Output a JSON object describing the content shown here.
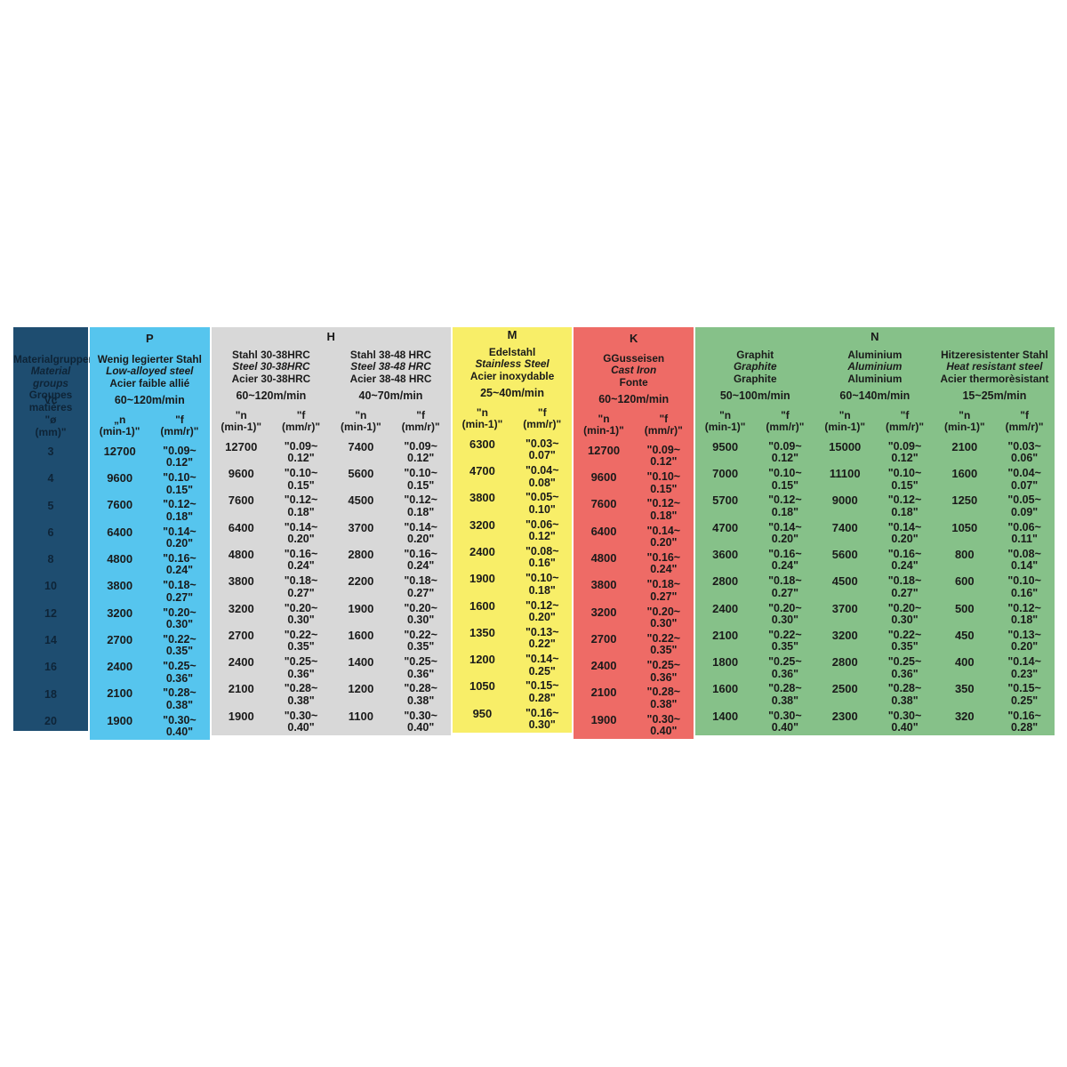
{
  "colors": {
    "page_bg": "#ffffff",
    "legend_bg": "#1e4d70",
    "legend_text": "#0e2437",
    "text": "#1a1a1a",
    "group_P": "#56c5ee",
    "group_H": "#d8d8d8",
    "group_M": "#f8ee68",
    "group_K": "#ee6b66",
    "group_N": "#86c189"
  },
  "chart_data": {
    "type": "table",
    "title": "Machining cutting data by material group (ISO P/H/M/K/N)",
    "legend": {
      "material_lines": [
        "Materialgruppen",
        "Material groups",
        "Groupes matières"
      ],
      "vc_label": "Vc",
      "dia_header": "\"ø\n(mm)\"",
      "diameters": [
        "3",
        "4",
        "5",
        "6",
        "8",
        "10",
        "12",
        "14",
        "16",
        "18",
        "20"
      ]
    },
    "groups": [
      {
        "letter": "P",
        "subgroups": [
          {
            "material": [
              "Wenig legierter Stahl",
              "Low-alloyed steel",
              "Acier faible allié"
            ],
            "vc": "60~120m/min",
            "n_header": "„n\n(min-1)\"",
            "f_header": "\"f\n(mm/r)\"",
            "n": [
              "12700",
              "9600",
              "7600",
              "6400",
              "4800",
              "3800",
              "3200",
              "2700",
              "2400",
              "2100",
              "1900"
            ],
            "f": [
              "\"0.09~\n0.12\"",
              "\"0.10~\n0.15\"",
              "\"0.12~\n0.18\"",
              "\"0.14~\n0.20\"",
              "\"0.16~\n0.24\"",
              "\"0.18~\n0.27\"",
              "\"0.20~\n0.30\"",
              "\"0.22~\n0.35\"",
              "\"0.25~\n0.36\"",
              "\"0.28~\n0.38\"",
              "\"0.30~\n0.40\""
            ]
          }
        ]
      },
      {
        "letter": "H",
        "subgroups": [
          {
            "material": [
              "Stahl 30-38HRC",
              "Steel 30-38HRC",
              "Acier 30-38HRC"
            ],
            "vc": "60~120m/min",
            "n_header": "\"n\n(min-1)\"",
            "f_header": "\"f\n(mm/r)\"",
            "n": [
              "12700",
              "9600",
              "7600",
              "6400",
              "4800",
              "3800",
              "3200",
              "2700",
              "2400",
              "2100",
              "1900"
            ],
            "f": [
              "\"0.09~\n0.12\"",
              "\"0.10~\n0.15\"",
              "\"0.12~\n0.18\"",
              "\"0.14~\n0.20\"",
              "\"0.16~\n0.24\"",
              "\"0.18~\n0.27\"",
              "\"0.20~\n0.30\"",
              "\"0.22~\n0.35\"",
              "\"0.25~\n0.36\"",
              "\"0.28~\n0.38\"",
              "\"0.30~\n0.40\""
            ]
          },
          {
            "material": [
              "Stahl 38-48 HRC",
              "Steel 38-48 HRC",
              "Acier 38-48 HRC"
            ],
            "vc": "40~70m/min",
            "n_header": "\"n\n(min-1)\"",
            "f_header": "\"f\n(mm/r)\"",
            "n": [
              "7400",
              "5600",
              "4500",
              "3700",
              "2800",
              "2200",
              "1900",
              "1600",
              "1400",
              "1200",
              "1100"
            ],
            "f": [
              "\"0.09~\n0.12\"",
              "\"0.10~\n0.15\"",
              "\"0.12~\n0.18\"",
              "\"0.14~\n0.20\"",
              "\"0.16~\n0.24\"",
              "\"0.18~\n0.27\"",
              "\"0.20~\n0.30\"",
              "\"0.22~\n0.35\"",
              "\"0.25~\n0.36\"",
              "\"0.28~\n0.38\"",
              "\"0.30~\n0.40\""
            ]
          }
        ]
      },
      {
        "letter": "M",
        "subgroups": [
          {
            "material": [
              "Edelstahl",
              "Stainless Steel",
              "Acier inoxydable"
            ],
            "vc": "25~40m/min",
            "n_header": "\"n\n(min-1)\"",
            "f_header": "\"f\n(mm/r)\"",
            "n": [
              "6300",
              "4700",
              "3800",
              "3200",
              "2400",
              "1900",
              "1600",
              "1350",
              "1200",
              "1050",
              "950"
            ],
            "f": [
              "\"0.03~\n0.07\"",
              "\"0.04~\n0.08\"",
              "\"0.05~\n0.10\"",
              "\"0.06~\n0.12\"",
              "\"0.08~\n0.16\"",
              "\"0.10~\n0.18\"",
              "\"0.12~\n0.20\"",
              "\"0.13~\n0.22\"",
              "\"0.14~\n0.25\"",
              "\"0.15~\n0.28\"",
              "\"0.16~\n0.30\""
            ]
          }
        ]
      },
      {
        "letter": "K",
        "subgroups": [
          {
            "material": [
              "GGusseisen",
              "Cast Iron",
              "Fonte"
            ],
            "vc": "60~120m/min",
            "n_header": "\"n\n(min-1)\"",
            "f_header": "\"f\n(mm/r)\"",
            "n": [
              "12700",
              "9600",
              "7600",
              "6400",
              "4800",
              "3800",
              "3200",
              "2700",
              "2400",
              "2100",
              "1900"
            ],
            "f": [
              "\"0.09~\n0.12\"",
              "\"0.10~\n0.15\"",
              "\"0.12~\n0.18\"",
              "\"0.14~\n0.20\"",
              "\"0.16~\n0.24\"",
              "\"0.18~\n0.27\"",
              "\"0.20~\n0.30\"",
              "\"0.22~\n0.35\"",
              "\"0.25~\n0.36\"",
              "\"0.28~\n0.38\"",
              "\"0.30~\n0.40\""
            ]
          }
        ]
      },
      {
        "letter": "N",
        "subgroups": [
          {
            "material": [
              "Graphit",
              "Graphite",
              "Graphite"
            ],
            "vc": "50~100m/min",
            "n_header": "\"n\n(min-1)\"",
            "f_header": "\"f\n(mm/r)\"",
            "n": [
              "9500",
              "7000",
              "5700",
              "4700",
              "3600",
              "2800",
              "2400",
              "2100",
              "1800",
              "1600",
              "1400"
            ],
            "f": [
              "\"0.09~\n0.12\"",
              "\"0.10~\n0.15\"",
              "\"0.12~\n0.18\"",
              "\"0.14~\n0.20\"",
              "\"0.16~\n0.24\"",
              "\"0.18~\n0.27\"",
              "\"0.20~\n0.30\"",
              "\"0.22~\n0.35\"",
              "\"0.25~\n0.36\"",
              "\"0.28~\n0.38\"",
              "\"0.30~\n0.40\""
            ]
          },
          {
            "material": [
              "Aluminium",
              "Aluminium",
              "Aluminium"
            ],
            "vc": "60~140m/min",
            "n_header": "\"n\n(min-1)\"",
            "f_header": "\"f\n(mm/r)\"",
            "n": [
              "15000",
              "11100",
              "9000",
              "7400",
              "5600",
              "4500",
              "3700",
              "3200",
              "2800",
              "2500",
              "2300"
            ],
            "f": [
              "\"0.09~\n0.12\"",
              "\"0.10~\n0.15\"",
              "\"0.12~\n0.18\"",
              "\"0.14~\n0.20\"",
              "\"0.16~\n0.24\"",
              "\"0.18~\n0.27\"",
              "\"0.20~\n0.30\"",
              "\"0.22~\n0.35\"",
              "\"0.25~\n0.36\"",
              "\"0.28~\n0.38\"",
              "\"0.30~\n0.40\""
            ]
          },
          {
            "material": [
              "Hitzeresistenter Stahl",
              "Heat resistant steel",
              "Acier thermorèsistant"
            ],
            "vc": "15~25m/min",
            "n_header": "\"n\n(min-1)\"",
            "f_header": "\"f\n(mm/r)\"",
            "n": [
              "2100",
              "1600",
              "1250",
              "1050",
              "800",
              "600",
              "500",
              "450",
              "400",
              "350",
              "320"
            ],
            "f": [
              "\"0.03~\n0.06\"",
              "\"0.04~\n0.07\"",
              "\"0.05~\n0.09\"",
              "\"0.06~\n0.11\"",
              "\"0.08~\n0.14\"",
              "\"0.10~\n0.16\"",
              "\"0.12~\n0.18\"",
              "\"0.13~\n0.20\"",
              "\"0.14~\n0.23\"",
              "\"0.15~\n0.25\"",
              "\"0.16~\n0.28\""
            ]
          }
        ]
      }
    ]
  }
}
